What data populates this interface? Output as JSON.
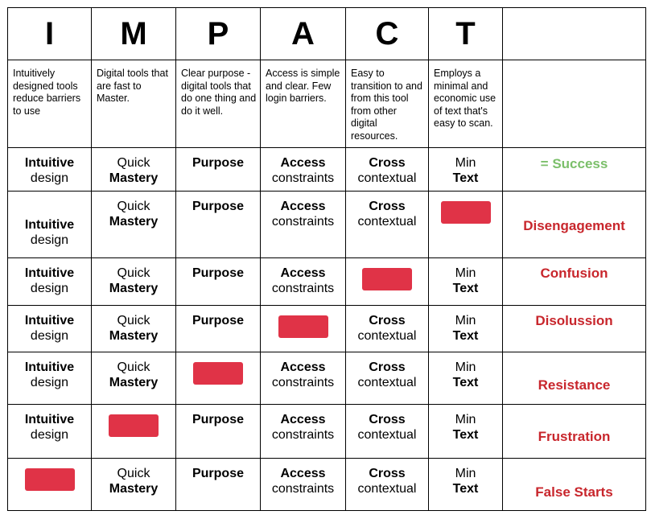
{
  "header": {
    "letters": [
      "I",
      "M",
      "P",
      "A",
      "C",
      "T"
    ],
    "descriptions": [
      "Intuitively designed tools reduce barriers to use",
      "Digital tools that are fast to Master.",
      "Clear purpose - digital tools that do one thing and do it well.",
      "Access is simple and clear. Few login barriers.",
      "Easy to transition to and from this tool from other digital resources.",
      "Employs a minimal and economic use of text that's easy to scan."
    ]
  },
  "factors": {
    "i": {
      "bold": "Intuitive",
      "plain": "design"
    },
    "m": {
      "plain": "Quick",
      "bold": "Mastery"
    },
    "p": {
      "bold": "Purpose"
    },
    "a": {
      "bold": "Access",
      "plain": "constraints"
    },
    "c": {
      "bold": "Cross",
      "plain": "contextual"
    },
    "t": {
      "plain": "Min",
      "bold": "Text"
    }
  },
  "outcomes": [
    "= Success",
    "Disengagement",
    "Confusion",
    "Disolussion",
    "Resistance",
    "Frustration",
    "False Starts"
  ],
  "colors": {
    "missing": "#e03347",
    "failure": "#c8262c",
    "success": "#7bbf6a"
  }
}
